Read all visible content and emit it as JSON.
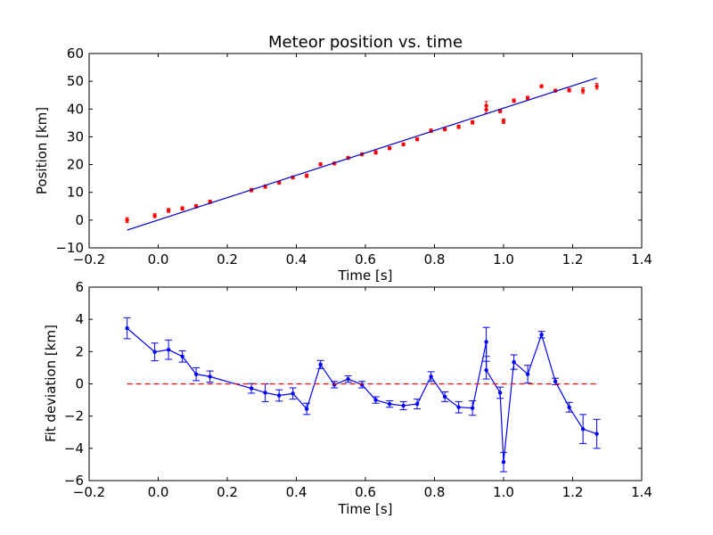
{
  "chart_data": [
    {
      "type": "scatter",
      "title": "Meteor position vs. time",
      "xlabel": "Time [s]",
      "ylabel": "Position [km]",
      "xlim": [
        -0.2,
        1.4
      ],
      "ylim": [
        -10,
        60
      ],
      "xticks": [
        -0.2,
        0.0,
        0.2,
        0.4,
        0.6,
        0.8,
        1.0,
        1.2,
        1.4
      ],
      "yticks": [
        -10,
        0,
        10,
        20,
        30,
        40,
        50,
        60
      ],
      "xtick_labels": [
        "−0.2",
        "0.0",
        "0.2",
        "0.4",
        "0.6",
        "0.8",
        "1.0",
        "1.2",
        "1.4"
      ],
      "ytick_labels": [
        "−10",
        "0",
        "10",
        "20",
        "30",
        "40",
        "50",
        "60"
      ],
      "grid": false,
      "series": [
        {
          "kind": "points-with-errorbars",
          "color": "#ff0000",
          "x": [
            -0.09,
            -0.01,
            0.03,
            0.07,
            0.11,
            0.15,
            0.27,
            0.31,
            0.35,
            0.39,
            0.43,
            0.47,
            0.51,
            0.55,
            0.59,
            0.63,
            0.67,
            0.71,
            0.75,
            0.79,
            0.83,
            0.87,
            0.91,
            0.95,
            0.95,
            0.99,
            1.0,
            1.03,
            1.07,
            1.11,
            1.15,
            1.19,
            1.23,
            1.27
          ],
          "y": [
            0.0,
            1.6,
            3.5,
            4.2,
            5.0,
            6.6,
            10.8,
            12.1,
            13.5,
            15.4,
            16.0,
            20.1,
            20.4,
            22.4,
            23.7,
            24.4,
            25.9,
            27.3,
            29.1,
            32.2,
            32.7,
            33.6,
            35.2,
            39.8,
            41.2,
            39.3,
            35.6,
            43.0,
            44.0,
            48.2,
            46.6,
            46.8,
            46.6,
            48.2
          ],
          "err": [
            0.9,
            0.7,
            0.7,
            0.6,
            0.6,
            0.6,
            0.6,
            0.6,
            0.5,
            0.5,
            0.6,
            0.5,
            0.5,
            0.5,
            0.5,
            0.6,
            0.5,
            0.5,
            0.5,
            0.6,
            0.5,
            0.6,
            0.6,
            1.3,
            1.5,
            0.6,
            0.8,
            0.6,
            0.6,
            0.5,
            0.5,
            0.6,
            1.0,
            1.0
          ]
        },
        {
          "kind": "fit-line",
          "color": "#0000cc",
          "x": [
            -0.09,
            1.27
          ],
          "y": [
            -3.6,
            51.2
          ]
        }
      ]
    },
    {
      "type": "line",
      "title": "",
      "xlabel": "Time [s]",
      "ylabel": "Fit deviation [km]",
      "xlim": [
        -0.2,
        1.4
      ],
      "ylim": [
        -6,
        6
      ],
      "xticks": [
        -0.2,
        0.0,
        0.2,
        0.4,
        0.6,
        0.8,
        1.0,
        1.2,
        1.4
      ],
      "yticks": [
        -6,
        -4,
        -2,
        0,
        2,
        4,
        6
      ],
      "xtick_labels": [
        "−0.2",
        "0.0",
        "0.2",
        "0.4",
        "0.6",
        "0.8",
        "1.0",
        "1.2",
        "1.4"
      ],
      "ytick_labels": [
        "−6",
        "−4",
        "−2",
        "0",
        "2",
        "4",
        "6"
      ],
      "grid": false,
      "series": [
        {
          "kind": "line-with-errorbars",
          "color": "#0000ff",
          "x": [
            -0.09,
            -0.01,
            0.03,
            0.07,
            0.11,
            0.15,
            0.27,
            0.31,
            0.35,
            0.39,
            0.43,
            0.47,
            0.51,
            0.55,
            0.59,
            0.63,
            0.67,
            0.71,
            0.75,
            0.79,
            0.83,
            0.87,
            0.91,
            0.95,
            0.95,
            0.99,
            1.0,
            1.03,
            1.07,
            1.11,
            1.15,
            1.19,
            1.23,
            1.27
          ],
          "y": [
            3.45,
            1.98,
            2.12,
            1.7,
            0.6,
            0.45,
            -0.28,
            -0.55,
            -0.72,
            -0.6,
            -1.55,
            1.2,
            -0.05,
            0.3,
            -0.05,
            -1.0,
            -1.25,
            -1.35,
            -1.25,
            0.45,
            -0.8,
            -1.45,
            -1.5,
            2.6,
            0.85,
            -0.55,
            -4.85,
            1.35,
            0.6,
            3.05,
            0.15,
            -1.45,
            -2.8,
            -3.1
          ],
          "err": [
            0.65,
            0.55,
            0.6,
            0.35,
            0.4,
            0.35,
            0.3,
            0.55,
            0.35,
            0.35,
            0.35,
            0.25,
            0.2,
            0.2,
            0.2,
            0.2,
            0.2,
            0.25,
            0.3,
            0.3,
            0.3,
            0.35,
            0.45,
            0.9,
            0.55,
            0.35,
            0.6,
            0.45,
            0.55,
            0.2,
            0.2,
            0.3,
            0.9,
            0.9
          ]
        },
        {
          "kind": "zero-reference",
          "color": "#ff0000",
          "style": "dashed",
          "x": [
            -0.09,
            1.27
          ],
          "y": [
            0,
            0
          ]
        }
      ]
    }
  ]
}
